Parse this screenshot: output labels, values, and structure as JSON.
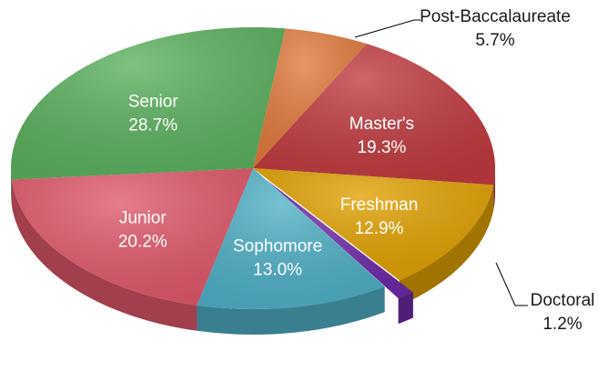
{
  "chart_data": {
    "type": "pie",
    "variant": "3d-exploded",
    "slices": [
      {
        "label": "Master's",
        "percent_label": "19.3%",
        "value": 19.3,
        "color": "#c03a3f"
      },
      {
        "label": "Freshman",
        "percent_label": "12.9%",
        "value": 12.9,
        "color": "#e0a000"
      },
      {
        "label": "Doctoral",
        "percent_label": "1.2%",
        "value": 1.2,
        "color": "#6c2aa8"
      },
      {
        "label": "Sophomore",
        "percent_label": "13.0%",
        "value": 13.0,
        "color": "#4fb0c6"
      },
      {
        "label": "Junior",
        "percent_label": "20.2%",
        "value": 20.2,
        "color": "#e0586a"
      },
      {
        "label": "Senior",
        "percent_label": "28.7%",
        "value": 28.7,
        "color": "#5bb05e"
      },
      {
        "label": "Post-Baccalaureate",
        "percent_label": "5.7%",
        "value": 5.7,
        "color": "#e07a3c"
      }
    ],
    "exploded": [
      "Doctoral"
    ],
    "label_placement": {
      "Doctoral": "outside",
      "Post-Baccalaureate": "outside"
    }
  }
}
